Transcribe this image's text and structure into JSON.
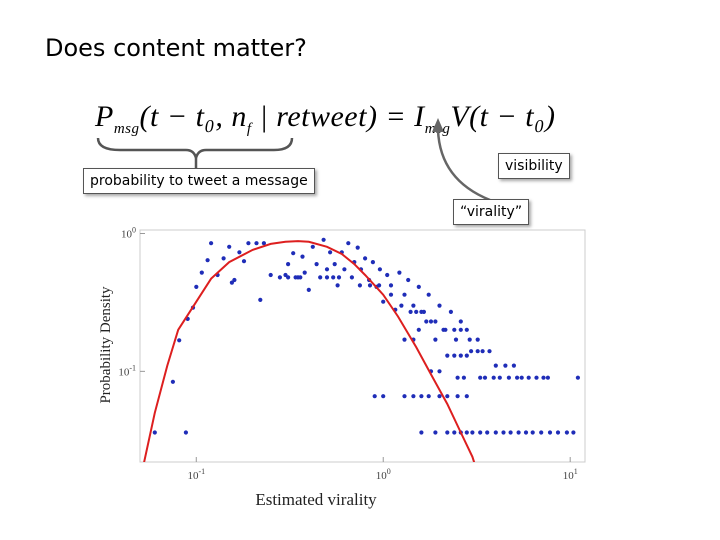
{
  "slide": {
    "title": "Does content matter?",
    "formula": {
      "lhs_symbol": "P",
      "lhs_sub": "msg",
      "lhs_args": "(t − t₀, n",
      "lhs_args_sub": "f",
      "lhs_cond": " | retweet) = I",
      "rhs_sub": "msg",
      "rhs_body": "V(t − t₀)"
    },
    "callouts": {
      "probability": "probability to tweet a message",
      "visibility": "visibility",
      "virality": "“virality”"
    },
    "colors": {
      "points": "#1f2db8",
      "curve": "#dd1f1f",
      "arrow": "#666666"
    }
  },
  "chart_data": {
    "type": "scatter",
    "xlabel": "Estimated virality",
    "ylabel": "Probability Density",
    "xscale": "log",
    "yscale": "log",
    "xlim": [
      0.05,
      12
    ],
    "ylim": [
      0.022,
      1.06
    ],
    "xticks": [
      {
        "value": 0.1,
        "base": "10",
        "exp": "-1"
      },
      {
        "value": 1,
        "base": "10",
        "exp": "0"
      },
      {
        "value": 10,
        "base": "10",
        "exp": "1"
      }
    ],
    "yticks": [
      {
        "value": 0.1,
        "base": "10",
        "exp": "-1"
      },
      {
        "value": 1,
        "base": "10",
        "exp": "0"
      }
    ],
    "series": [
      {
        "kind": "points",
        "points": [
          [
            0.06,
            0.036
          ],
          [
            0.075,
            0.084
          ],
          [
            0.081,
            0.168
          ],
          [
            0.088,
            0.036
          ],
          [
            0.09,
            0.24
          ],
          [
            0.096,
            0.29
          ],
          [
            0.1,
            0.41
          ],
          [
            0.107,
            0.52
          ],
          [
            0.115,
            0.64
          ],
          [
            0.12,
            0.85
          ],
          [
            0.13,
            0.5
          ],
          [
            0.14,
            0.66
          ],
          [
            0.15,
            0.8
          ],
          [
            0.155,
            0.44
          ],
          [
            0.16,
            0.46
          ],
          [
            0.17,
            0.73
          ],
          [
            0.18,
            0.63
          ],
          [
            0.19,
            0.85
          ],
          [
            0.21,
            0.85
          ],
          [
            0.23,
            0.85
          ],
          [
            0.25,
            0.5
          ],
          [
            0.22,
            0.33
          ],
          [
            0.28,
            0.48
          ],
          [
            0.3,
            0.5
          ],
          [
            0.31,
            0.6
          ],
          [
            0.33,
            0.72
          ],
          [
            0.35,
            0.48
          ],
          [
            0.37,
            0.68
          ],
          [
            0.38,
            0.52
          ],
          [
            0.4,
            0.39
          ],
          [
            0.42,
            0.8
          ],
          [
            0.44,
            0.6
          ],
          [
            0.46,
            0.48
          ],
          [
            0.48,
            0.9
          ],
          [
            0.5,
            0.55
          ],
          [
            0.52,
            0.73
          ],
          [
            0.55,
            0.6
          ],
          [
            0.57,
            0.42
          ],
          [
            0.6,
            0.73
          ],
          [
            0.62,
            0.55
          ],
          [
            0.65,
            0.85
          ],
          [
            0.68,
            0.48
          ],
          [
            0.7,
            0.62
          ],
          [
            0.73,
            0.79
          ],
          [
            0.76,
            0.55
          ],
          [
            0.8,
            0.66
          ],
          [
            0.84,
            0.46
          ],
          [
            0.88,
            0.62
          ],
          [
            0.92,
            0.41
          ],
          [
            0.96,
            0.55
          ],
          [
            1.0,
            0.32
          ],
          [
            1.05,
            0.5
          ],
          [
            1.1,
            0.42
          ],
          [
            1.16,
            0.28
          ],
          [
            1.22,
            0.52
          ],
          [
            1.3,
            0.36
          ],
          [
            1.36,
            0.46
          ],
          [
            1.45,
            0.3
          ],
          [
            1.55,
            0.41
          ],
          [
            1.65,
            0.27
          ],
          [
            1.75,
            0.36
          ],
          [
            1.9,
            0.23
          ],
          [
            2.0,
            0.3
          ],
          [
            2.15,
            0.2
          ],
          [
            2.3,
            0.27
          ],
          [
            2.45,
            0.17
          ],
          [
            2.6,
            0.23
          ],
          [
            2.8,
            0.2
          ],
          [
            2.95,
            0.14
          ],
          [
            3.2,
            0.17
          ],
          [
            0.31,
            0.48
          ],
          [
            0.34,
            0.48
          ],
          [
            0.36,
            0.48
          ],
          [
            0.5,
            0.48
          ],
          [
            0.54,
            0.48
          ],
          [
            0.58,
            0.48
          ],
          [
            0.75,
            0.42
          ],
          [
            0.85,
            0.42
          ],
          [
            0.95,
            0.42
          ],
          [
            1.1,
            0.36
          ],
          [
            1.25,
            0.3
          ],
          [
            1.4,
            0.27
          ],
          [
            1.5,
            0.27
          ],
          [
            1.6,
            0.27
          ],
          [
            1.7,
            0.23
          ],
          [
            1.8,
            0.23
          ],
          [
            2.1,
            0.2
          ],
          [
            2.4,
            0.2
          ],
          [
            2.6,
            0.2
          ],
          [
            2.9,
            0.17
          ],
          [
            3.2,
            0.14
          ],
          [
            3.4,
            0.14
          ],
          [
            3.7,
            0.14
          ],
          [
            4.0,
            0.11
          ],
          [
            4.5,
            0.11
          ],
          [
            5.0,
            0.11
          ],
          [
            5.5,
            0.09
          ],
          [
            6.0,
            0.09
          ],
          [
            6.6,
            0.09
          ],
          [
            7.2,
            0.09
          ],
          [
            7.6,
            0.09
          ],
          [
            11.0,
            0.09
          ],
          [
            2.5,
            0.09
          ],
          [
            2.7,
            0.09
          ],
          [
            3.3,
            0.09
          ],
          [
            3.5,
            0.09
          ],
          [
            3.9,
            0.09
          ],
          [
            4.2,
            0.09
          ],
          [
            4.7,
            0.09
          ],
          [
            5.2,
            0.09
          ],
          [
            2.2,
            0.036
          ],
          [
            2.4,
            0.036
          ],
          [
            2.6,
            0.036
          ],
          [
            2.8,
            0.036
          ],
          [
            3.0,
            0.036
          ],
          [
            3.3,
            0.036
          ],
          [
            3.6,
            0.036
          ],
          [
            4.0,
            0.036
          ],
          [
            4.4,
            0.036
          ],
          [
            4.8,
            0.036
          ],
          [
            5.3,
            0.036
          ],
          [
            5.8,
            0.036
          ],
          [
            6.3,
            0.036
          ],
          [
            7.0,
            0.036
          ],
          [
            7.8,
            0.036
          ],
          [
            8.6,
            0.036
          ],
          [
            9.6,
            0.036
          ],
          [
            10.4,
            0.036
          ],
          [
            1.6,
            0.036
          ],
          [
            1.9,
            0.036
          ],
          [
            0.9,
            0.066
          ],
          [
            1.0,
            0.066
          ],
          [
            1.3,
            0.066
          ],
          [
            1.45,
            0.066
          ],
          [
            1.6,
            0.066
          ],
          [
            1.75,
            0.066
          ],
          [
            2.0,
            0.066
          ],
          [
            2.2,
            0.066
          ],
          [
            2.5,
            0.066
          ],
          [
            2.8,
            0.066
          ],
          [
            1.8,
            0.1
          ],
          [
            2.0,
            0.1
          ],
          [
            2.2,
            0.13
          ],
          [
            2.4,
            0.13
          ],
          [
            2.6,
            0.13
          ],
          [
            2.8,
            0.13
          ],
          [
            1.3,
            0.17
          ],
          [
            1.45,
            0.17
          ],
          [
            1.55,
            0.2
          ],
          [
            1.9,
            0.17
          ]
        ]
      },
      {
        "kind": "fit_curve",
        "points": [
          [
            0.05,
            0.016
          ],
          [
            0.06,
            0.05
          ],
          [
            0.07,
            0.11
          ],
          [
            0.08,
            0.2
          ],
          [
            0.1,
            0.32
          ],
          [
            0.12,
            0.47
          ],
          [
            0.15,
            0.62
          ],
          [
            0.2,
            0.76
          ],
          [
            0.25,
            0.84
          ],
          [
            0.3,
            0.87
          ],
          [
            0.35,
            0.88
          ],
          [
            0.4,
            0.87
          ],
          [
            0.5,
            0.8
          ],
          [
            0.6,
            0.71
          ],
          [
            0.7,
            0.6
          ],
          [
            0.8,
            0.5
          ],
          [
            1.0,
            0.36
          ],
          [
            1.2,
            0.25
          ],
          [
            1.5,
            0.15
          ],
          [
            1.8,
            0.095
          ],
          [
            2.2,
            0.058
          ],
          [
            2.6,
            0.036
          ],
          [
            3.0,
            0.024
          ],
          [
            3.3,
            0.016
          ]
        ]
      }
    ]
  }
}
